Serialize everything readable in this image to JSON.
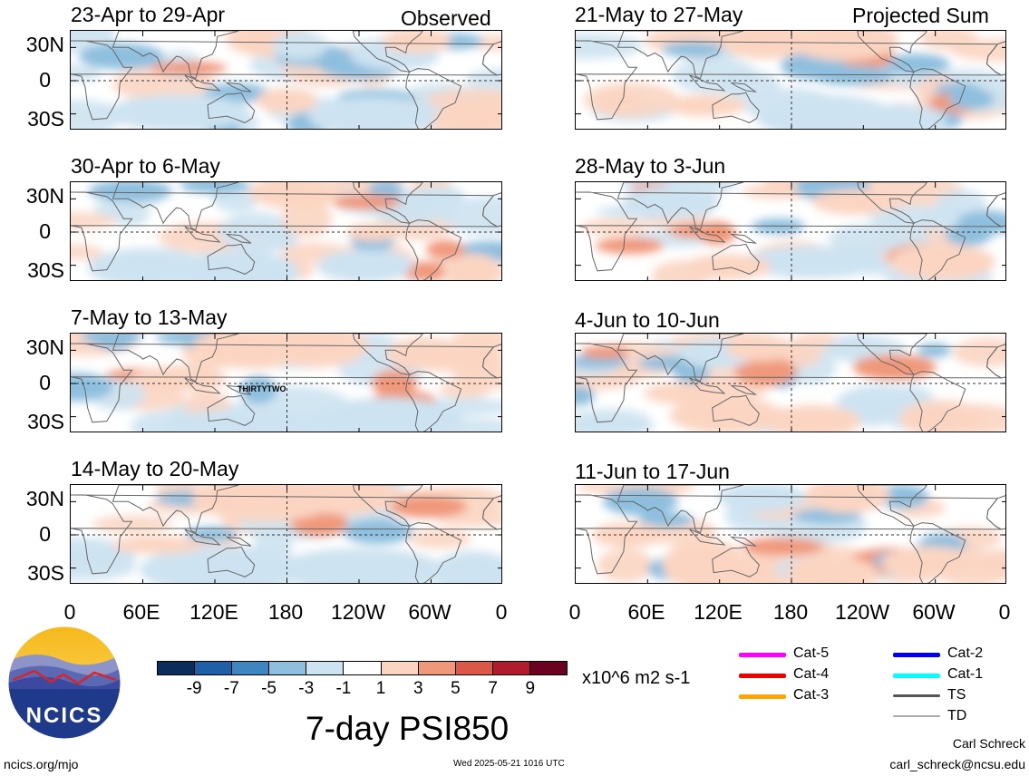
{
  "header": {
    "observed_label": "Observed",
    "projected_label": "Projected Sum"
  },
  "panels": [
    {
      "title": "23-Apr to 29-Apr"
    },
    {
      "title": "30-Apr to 6-May"
    },
    {
      "title": "7-May to 13-May"
    },
    {
      "title": "14-May to 20-May"
    },
    {
      "title": "21-May to 27-May"
    },
    {
      "title": "28-May to 3-Jun"
    },
    {
      "title": "4-Jun to 10-Jun"
    },
    {
      "title": "11-Jun to 17-Jun"
    }
  ],
  "storm_label": "THIRTYTWO",
  "lat_labels": [
    "30N",
    "0",
    "30S"
  ],
  "lon_labels": [
    "0",
    "60E",
    "120E",
    "180",
    "120W",
    "60W",
    "0"
  ],
  "colorbar": {
    "labels": [
      "-9",
      "-7",
      "-5",
      "-3",
      "-1",
      "1",
      "3",
      "5",
      "7",
      "9"
    ],
    "units": "x10^6 m2 s-1",
    "colors": [
      "#0a2d5c",
      "#1f5fa8",
      "#3f86c1",
      "#8ebfde",
      "#cde3f1",
      "#ffffff",
      "#fbd5c2",
      "#f0987a",
      "#d95847",
      "#b01b2e",
      "#6a0220"
    ]
  },
  "legend": {
    "items": [
      {
        "label": "Cat-5",
        "color": "#ff00ff"
      },
      {
        "label": "Cat-4",
        "color": "#ee0000"
      },
      {
        "label": "Cat-3",
        "color": "#ffa500"
      },
      {
        "label": "Cat-2",
        "color": "#0000ee"
      },
      {
        "label": "Cat-1",
        "color": "#00ffff"
      },
      {
        "label": "TS",
        "color": "#555555"
      },
      {
        "label": "TD",
        "color": "#aaaaaa"
      }
    ]
  },
  "main_title": "7-day PSI850",
  "logo_text": "NCICS",
  "footer": {
    "left": "ncics.org/mjo",
    "center": "Wed 2025-05-21 1016 UTC",
    "right_name": "Carl Schreck",
    "right_email": "carl_schreck@ncsu.edu"
  }
}
